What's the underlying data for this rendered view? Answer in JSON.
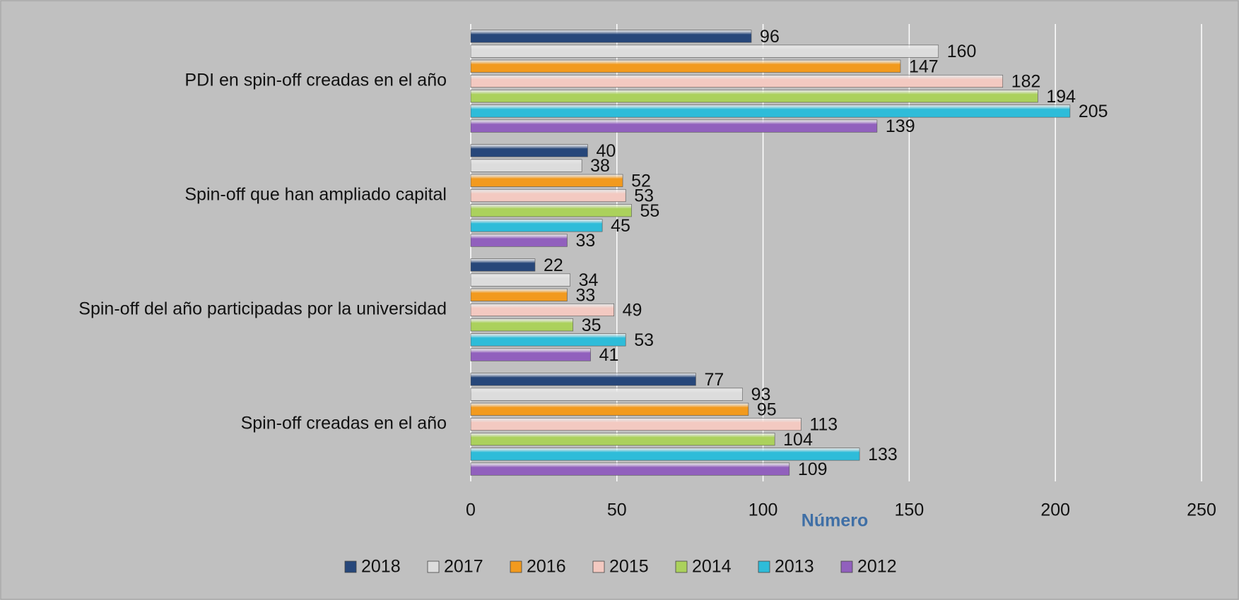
{
  "chart_data": {
    "type": "bar",
    "orientation": "horizontal",
    "categories": [
      "PDI en spin-off creadas en el año",
      "Spin-off que han ampliado capital",
      "Spin-off del año participadas por la universidad",
      "Spin-off creadas en el año"
    ],
    "series": [
      {
        "name": "2018",
        "color": "#27477a",
        "values": [
          96,
          40,
          22,
          77
        ]
      },
      {
        "name": "2017",
        "color": "#dcdcdc",
        "values": [
          160,
          38,
          34,
          93
        ]
      },
      {
        "name": "2016",
        "color": "#f29a1e",
        "values": [
          147,
          52,
          33,
          95
        ]
      },
      {
        "name": "2015",
        "color": "#f3c9c1",
        "values": [
          182,
          53,
          49,
          113
        ]
      },
      {
        "name": "2014",
        "color": "#abd15c",
        "values": [
          194,
          55,
          35,
          104
        ]
      },
      {
        "name": "2013",
        "color": "#2ebcd9",
        "values": [
          205,
          45,
          53,
          133
        ]
      },
      {
        "name": "2012",
        "color": "#9160bd",
        "values": [
          139,
          33,
          41,
          109
        ]
      }
    ],
    "xlabel": "Número",
    "xlim": [
      0,
      250
    ],
    "xticks": [
      0,
      50,
      100,
      150,
      200,
      250
    ],
    "grid": true,
    "legend": "bottom"
  }
}
